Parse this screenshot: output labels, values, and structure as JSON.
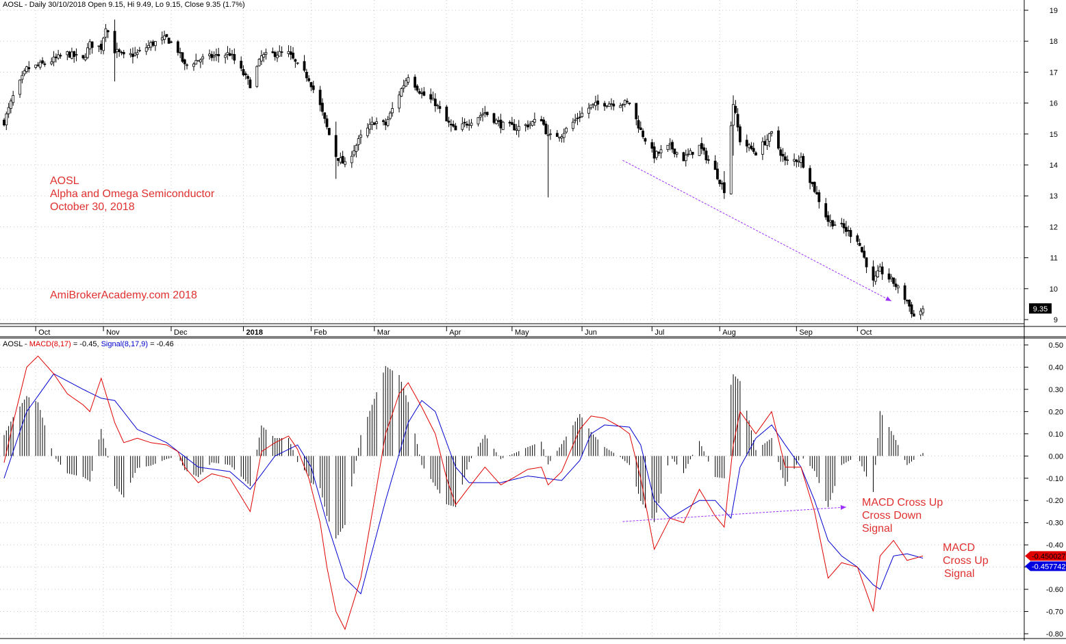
{
  "price_header": "AOSL - Daily 30/10/2018 Open 9.15, Hi 9.49, Lo 9.15, Close 9.35 (1.7%)",
  "macd_header": {
    "prefix": "AOSL - ",
    "macd_label": "MACD(8,17)",
    "macd_value": " = -0.45, ",
    "signal_label": "Signal(8,17,9)",
    "signal_value": " = -0.46"
  },
  "annotations": {
    "ticker": "AOSL",
    "company": "Alpha and Omega Semiconductor",
    "date": "October 30, 2018",
    "site": "AmiBrokerAcademy.com  2018",
    "cross_down": [
      "MACD Cross Up",
      "Cross Down",
      "Signal"
    ],
    "cross_up": [
      "MACD",
      "Cross Up",
      "Signal"
    ]
  },
  "colors": {
    "candle": "#000000",
    "macd_line": "#e00000",
    "signal_line": "#0000d0",
    "trend_arrow": "#9b30ff",
    "annotation": "#e03030",
    "histogram": "#000000"
  },
  "chart_data": [
    {
      "type": "candlestick",
      "ylim": [
        8.8,
        19.3
      ],
      "ytick_labels": [
        "9",
        "10",
        "11",
        "12",
        "13",
        "14",
        "15",
        "16",
        "17",
        "18",
        "19"
      ],
      "last_price_label": "9.35",
      "month_labels": [
        {
          "label": "Oct",
          "date": "2017-10-02"
        },
        {
          "label": "Nov",
          "date": "2017-11-01"
        },
        {
          "label": "Dec",
          "date": "2017-12-01"
        },
        {
          "label": "2018",
          "date": "2018-01-02"
        },
        {
          "label": "Feb",
          "date": "2018-02-01"
        },
        {
          "label": "Mar",
          "date": "2018-03-01"
        },
        {
          "label": "Apr",
          "date": "2018-04-02"
        },
        {
          "label": "May",
          "date": "2018-05-01"
        },
        {
          "label": "Jun",
          "date": "2018-06-01"
        },
        {
          "label": "Jul",
          "date": "2018-07-02"
        },
        {
          "label": "Aug",
          "date": "2018-08-01"
        },
        {
          "label": "Sep",
          "date": "2018-09-04"
        },
        {
          "label": "Oct",
          "date": "2018-10-01"
        }
      ],
      "close_path": [
        [
          "2017-09-18",
          15.4
        ],
        [
          "2017-09-22",
          16.2
        ],
        [
          "2017-09-28",
          17.1
        ],
        [
          "2017-10-03",
          17.2
        ],
        [
          "2017-10-10",
          17.4
        ],
        [
          "2017-10-16",
          17.6
        ],
        [
          "2017-10-23",
          17.4
        ],
        [
          "2017-10-26",
          17.9
        ],
        [
          "2017-10-31",
          17.8
        ],
        [
          "2017-11-02",
          18.5
        ],
        [
          "2017-11-06",
          17.7
        ],
        [
          "2017-11-10",
          17.5
        ],
        [
          "2017-11-16",
          17.6
        ],
        [
          "2017-11-22",
          17.9
        ],
        [
          "2017-11-29",
          18.1
        ],
        [
          "2017-12-04",
          17.7
        ],
        [
          "2017-12-07",
          17.2
        ],
        [
          "2017-12-13",
          17.4
        ],
        [
          "2017-12-19",
          17.5
        ],
        [
          "2017-12-27",
          17.6
        ],
        [
          "2018-01-05",
          16.6
        ],
        [
          "2018-01-10",
          17.5
        ],
        [
          "2018-01-16",
          17.6
        ],
        [
          "2018-01-22",
          17.6
        ],
        [
          "2018-01-26",
          17.2
        ],
        [
          "2018-01-31",
          16.8
        ],
        [
          "2018-02-05",
          15.9
        ],
        [
          "2018-02-08",
          15.2
        ],
        [
          "2018-02-12",
          14.3
        ],
        [
          "2018-02-16",
          14.0
        ],
        [
          "2018-02-23",
          14.9
        ],
        [
          "2018-03-01",
          15.4
        ],
        [
          "2018-03-06",
          15.3
        ],
        [
          "2018-03-12",
          16.3
        ],
        [
          "2018-03-16",
          16.9
        ],
        [
          "2018-03-22",
          16.3
        ],
        [
          "2018-03-28",
          16.0
        ],
        [
          "2018-04-02",
          15.4
        ],
        [
          "2018-04-06",
          15.1
        ],
        [
          "2018-04-12",
          15.4
        ],
        [
          "2018-04-19",
          15.7
        ],
        [
          "2018-04-26",
          15.3
        ],
        [
          "2018-05-03",
          15.2
        ],
        [
          "2018-05-08",
          15.3
        ],
        [
          "2018-05-14",
          15.5
        ],
        [
          "2018-05-17",
          14.9
        ],
        [
          "2018-05-23",
          15.0
        ],
        [
          "2018-05-31",
          15.6
        ],
        [
          "2018-06-05",
          15.9
        ],
        [
          "2018-06-11",
          16.0
        ],
        [
          "2018-06-18",
          16.0
        ],
        [
          "2018-06-22",
          16.0
        ],
        [
          "2018-06-27",
          15.1
        ],
        [
          "2018-07-03",
          14.3
        ],
        [
          "2018-07-10",
          14.6
        ],
        [
          "2018-07-16",
          14.2
        ],
        [
          "2018-07-23",
          14.6
        ],
        [
          "2018-07-30",
          13.8
        ],
        [
          "2018-08-03",
          13.2
        ],
        [
          "2018-08-07",
          16.0
        ],
        [
          "2018-08-10",
          14.8
        ],
        [
          "2018-08-17",
          14.4
        ],
        [
          "2018-08-24",
          15.0
        ],
        [
          "2018-08-30",
          14.1
        ],
        [
          "2018-09-06",
          14.2
        ],
        [
          "2018-09-12",
          13.2
        ],
        [
          "2018-09-18",
          12.2
        ],
        [
          "2018-09-24",
          12.0
        ],
        [
          "2018-10-01",
          11.6
        ],
        [
          "2018-10-08",
          10.2
        ],
        [
          "2018-10-11",
          10.6
        ],
        [
          "2018-10-17",
          10.2
        ],
        [
          "2018-10-23",
          9.6
        ],
        [
          "2018-10-26",
          9.1
        ],
        [
          "2018-10-30",
          9.35
        ]
      ],
      "trend_arrow": {
        "from": [
          "2018-06-19",
          14.15
        ],
        "to": [
          "2018-10-16",
          9.6
        ]
      }
    },
    {
      "type": "line",
      "title": "MACD(8,17), Signal(8,17,9)",
      "ylim": [
        -0.82,
        0.53
      ],
      "ytick_labels": [
        "0.50",
        "0.40",
        "0.30",
        "0.20",
        "0.10",
        "0.00",
        "-0.10",
        "-0.20",
        "-0.30",
        "-0.40",
        "-0.50",
        "-0.60",
        "-0.70",
        "-0.80"
      ],
      "last_value_labels": {
        "macd": "-0.450027",
        "signal": "-0.457742"
      },
      "series": [
        {
          "name": "MACD(8,17)",
          "points": [
            [
              "2017-09-18",
              -0.03
            ],
            [
              "2017-09-22",
              0.15
            ],
            [
              "2017-09-28",
              0.4
            ],
            [
              "2017-10-03",
              0.45
            ],
            [
              "2017-10-10",
              0.37
            ],
            [
              "2017-10-16",
              0.28
            ],
            [
              "2017-10-23",
              0.23
            ],
            [
              "2017-10-26",
              0.2
            ],
            [
              "2017-10-31",
              0.35
            ],
            [
              "2017-11-06",
              0.15
            ],
            [
              "2017-11-10",
              0.06
            ],
            [
              "2017-11-16",
              0.08
            ],
            [
              "2017-11-22",
              0.06
            ],
            [
              "2017-11-29",
              0.05
            ],
            [
              "2017-12-04",
              0.02
            ],
            [
              "2017-12-07",
              -0.05
            ],
            [
              "2017-12-13",
              -0.12
            ],
            [
              "2017-12-19",
              -0.08
            ],
            [
              "2017-12-27",
              -0.1
            ],
            [
              "2018-01-05",
              -0.25
            ],
            [
              "2018-01-10",
              0.02
            ],
            [
              "2018-01-16",
              0.06
            ],
            [
              "2018-01-22",
              0.09
            ],
            [
              "2018-01-26",
              0.03
            ],
            [
              "2018-01-31",
              -0.1
            ],
            [
              "2018-02-05",
              -0.3
            ],
            [
              "2018-02-08",
              -0.5
            ],
            [
              "2018-02-12",
              -0.7
            ],
            [
              "2018-02-16",
              -0.78
            ],
            [
              "2018-02-23",
              -0.55
            ],
            [
              "2018-03-01",
              -0.2
            ],
            [
              "2018-03-06",
              0.1
            ],
            [
              "2018-03-12",
              0.28
            ],
            [
              "2018-03-16",
              0.33
            ],
            [
              "2018-03-22",
              0.22
            ],
            [
              "2018-03-28",
              0.1
            ],
            [
              "2018-04-02",
              -0.1
            ],
            [
              "2018-04-06",
              -0.22
            ],
            [
              "2018-04-12",
              -0.14
            ],
            [
              "2018-04-19",
              -0.05
            ],
            [
              "2018-04-26",
              -0.13
            ],
            [
              "2018-05-03",
              -0.09
            ],
            [
              "2018-05-08",
              -0.06
            ],
            [
              "2018-05-14",
              -0.05
            ],
            [
              "2018-05-17",
              -0.13
            ],
            [
              "2018-05-23",
              -0.07
            ],
            [
              "2018-05-31",
              0.12
            ],
            [
              "2018-06-05",
              0.18
            ],
            [
              "2018-06-11",
              0.17
            ],
            [
              "2018-06-18",
              0.13
            ],
            [
              "2018-06-22",
              0.1
            ],
            [
              "2018-06-27",
              -0.1
            ],
            [
              "2018-07-03",
              -0.42
            ],
            [
              "2018-07-10",
              -0.28
            ],
            [
              "2018-07-16",
              -0.3
            ],
            [
              "2018-07-23",
              -0.15
            ],
            [
              "2018-07-30",
              -0.27
            ],
            [
              "2018-08-03",
              -0.32
            ],
            [
              "2018-08-07",
              0.05
            ],
            [
              "2018-08-10",
              0.2
            ],
            [
              "2018-08-17",
              0.1
            ],
            [
              "2018-08-24",
              0.2
            ],
            [
              "2018-08-30",
              -0.05
            ],
            [
              "2018-09-06",
              -0.05
            ],
            [
              "2018-09-12",
              -0.25
            ],
            [
              "2018-09-18",
              -0.55
            ],
            [
              "2018-09-24",
              -0.48
            ],
            [
              "2018-10-01",
              -0.5
            ],
            [
              "2018-10-08",
              -0.7
            ],
            [
              "2018-10-11",
              -0.45
            ],
            [
              "2018-10-17",
              -0.38
            ],
            [
              "2018-10-23",
              -0.47
            ],
            [
              "2018-10-30",
              -0.45
            ]
          ]
        },
        {
          "name": "Signal(8,17,9)",
          "points": [
            [
              "2017-09-18",
              -0.1
            ],
            [
              "2017-09-28",
              0.2
            ],
            [
              "2017-10-10",
              0.37
            ],
            [
              "2017-10-23",
              0.3
            ],
            [
              "2017-10-31",
              0.26
            ],
            [
              "2017-11-06",
              0.25
            ],
            [
              "2017-11-16",
              0.12
            ],
            [
              "2017-11-29",
              0.06
            ],
            [
              "2017-12-13",
              -0.05
            ],
            [
              "2017-12-27",
              -0.07
            ],
            [
              "2018-01-05",
              -0.15
            ],
            [
              "2018-01-16",
              0.0
            ],
            [
              "2018-01-26",
              0.05
            ],
            [
              "2018-02-01",
              -0.05
            ],
            [
              "2018-02-08",
              -0.3
            ],
            [
              "2018-02-16",
              -0.55
            ],
            [
              "2018-02-23",
              -0.62
            ],
            [
              "2018-03-06",
              -0.2
            ],
            [
              "2018-03-16",
              0.15
            ],
            [
              "2018-03-22",
              0.25
            ],
            [
              "2018-03-28",
              0.2
            ],
            [
              "2018-04-06",
              -0.05
            ],
            [
              "2018-04-12",
              -0.12
            ],
            [
              "2018-04-26",
              -0.12
            ],
            [
              "2018-05-08",
              -0.09
            ],
            [
              "2018-05-23",
              -0.11
            ],
            [
              "2018-05-31",
              -0.02
            ],
            [
              "2018-06-05",
              0.1
            ],
            [
              "2018-06-11",
              0.14
            ],
            [
              "2018-06-22",
              0.13
            ],
            [
              "2018-06-27",
              0.05
            ],
            [
              "2018-07-03",
              -0.2
            ],
            [
              "2018-07-10",
              -0.28
            ],
            [
              "2018-07-23",
              -0.2
            ],
            [
              "2018-07-30",
              -0.2
            ],
            [
              "2018-08-06",
              -0.28
            ],
            [
              "2018-08-10",
              -0.05
            ],
            [
              "2018-08-17",
              0.08
            ],
            [
              "2018-08-24",
              0.14
            ],
            [
              "2018-08-30",
              0.05
            ],
            [
              "2018-09-06",
              -0.05
            ],
            [
              "2018-09-12",
              -0.2
            ],
            [
              "2018-09-18",
              -0.38
            ],
            [
              "2018-09-24",
              -0.45
            ],
            [
              "2018-10-01",
              -0.5
            ],
            [
              "2018-10-08",
              -0.58
            ],
            [
              "2018-10-11",
              -0.6
            ],
            [
              "2018-10-17",
              -0.45
            ],
            [
              "2018-10-23",
              -0.44
            ],
            [
              "2018-10-30",
              -0.46
            ]
          ]
        }
      ],
      "trend_arrow": {
        "from": [
          "2018-06-19",
          -0.295
        ],
        "to": [
          "2018-09-26",
          -0.23
        ]
      }
    }
  ]
}
